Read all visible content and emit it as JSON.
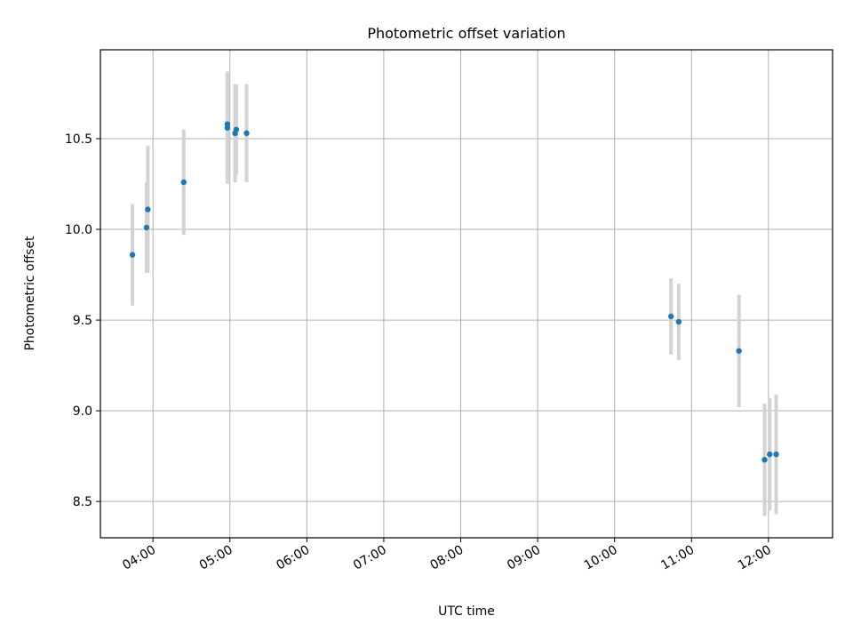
{
  "chart_data": {
    "type": "scatter",
    "title": "Photometric offset variation",
    "xlabel": "UTC time",
    "ylabel": "Photometric offset",
    "x_ticks": [
      "04:00",
      "05:00",
      "06:00",
      "07:00",
      "08:00",
      "09:00",
      "10:00",
      "11:00",
      "12:00"
    ],
    "x_tick_hours": [
      4,
      5,
      6,
      7,
      8,
      9,
      10,
      11,
      12
    ],
    "xlim": [
      "03:19",
      "12:50"
    ],
    "y_ticks": [
      "8.5",
      "9.0",
      "9.5",
      "10.0",
      "10.5"
    ],
    "y_tick_values": [
      8.5,
      9.0,
      9.5,
      10.0,
      10.5
    ],
    "ylim": [
      8.3,
      10.99
    ],
    "grid": true,
    "points": [
      {
        "x": "03:44",
        "y": 9.86,
        "err": 0.28
      },
      {
        "x": "03:55",
        "y": 10.01,
        "err": 0.25
      },
      {
        "x": "03:56",
        "y": 10.11,
        "err": 0.35
      },
      {
        "x": "04:24",
        "y": 10.26,
        "err": 0.29
      },
      {
        "x": "04:58",
        "y": 10.58,
        "err": 0.29
      },
      {
        "x": "04:58",
        "y": 10.56,
        "err": 0.31
      },
      {
        "x": "05:04",
        "y": 10.53,
        "err": 0.27
      },
      {
        "x": "05:05",
        "y": 10.55,
        "err": 0.25
      },
      {
        "x": "05:13",
        "y": 10.53,
        "err": 0.27
      },
      {
        "x": "10:44",
        "y": 9.52,
        "err": 0.21
      },
      {
        "x": "10:50",
        "y": 9.49,
        "err": 0.21
      },
      {
        "x": "11:37",
        "y": 9.33,
        "err": 0.31
      },
      {
        "x": "11:57",
        "y": 8.73,
        "err": 0.31
      },
      {
        "x": "12:01",
        "y": 8.76,
        "err": 0.31
      },
      {
        "x": "12:06",
        "y": 8.76,
        "err": 0.33
      }
    ],
    "colors": {
      "marker": "#1f77b4",
      "errorbar": "#d3d3d3",
      "grid": "#b0b0b0"
    }
  }
}
